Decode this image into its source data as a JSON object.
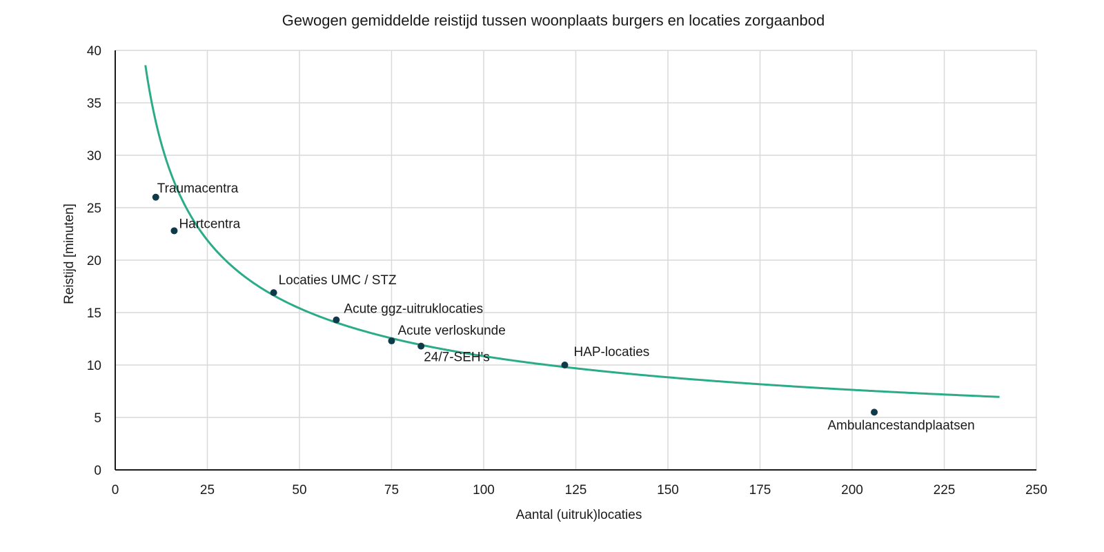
{
  "chart_data": {
    "type": "scatter",
    "title": "Gewogen gemiddelde reistijd tussen woonplaats burgers en locaties zorgaanbod",
    "xlabel": "Aantal (uitruk)locaties",
    "ylabel": "Reistijd [minuten]",
    "xlim": [
      0,
      250
    ],
    "ylim": [
      0,
      40
    ],
    "xticks": [
      0,
      25,
      50,
      75,
      100,
      125,
      150,
      175,
      200,
      225,
      250
    ],
    "yticks": [
      0,
      5,
      10,
      15,
      20,
      25,
      30,
      35,
      40
    ],
    "grid": true,
    "legend": "none",
    "points": [
      {
        "label": "Traumacentra",
        "x": 11,
        "y": 26.0
      },
      {
        "label": "Hartcentra",
        "x": 16,
        "y": 22.8
      },
      {
        "label": "Locaties UMC / STZ",
        "x": 43,
        "y": 16.9
      },
      {
        "label": "Acute ggz-uitruklocaties",
        "x": 60,
        "y": 14.3
      },
      {
        "label": "Acute verloskunde",
        "x": 75,
        "y": 12.3
      },
      {
        "label": "24/7-SEH's",
        "x": 83,
        "y": 11.8
      },
      {
        "label": "HAP-locaties",
        "x": 122,
        "y": 10.0
      },
      {
        "label": "Ambulancestandplaatsen",
        "x": 206,
        "y": 5.5
      }
    ],
    "trendline": {
      "type": "power",
      "a": 112,
      "b": -0.507,
      "x_range": [
        7.6,
        240
      ]
    },
    "colors": {
      "trendline": "#2bab87",
      "points": "#0f3a4a"
    }
  }
}
